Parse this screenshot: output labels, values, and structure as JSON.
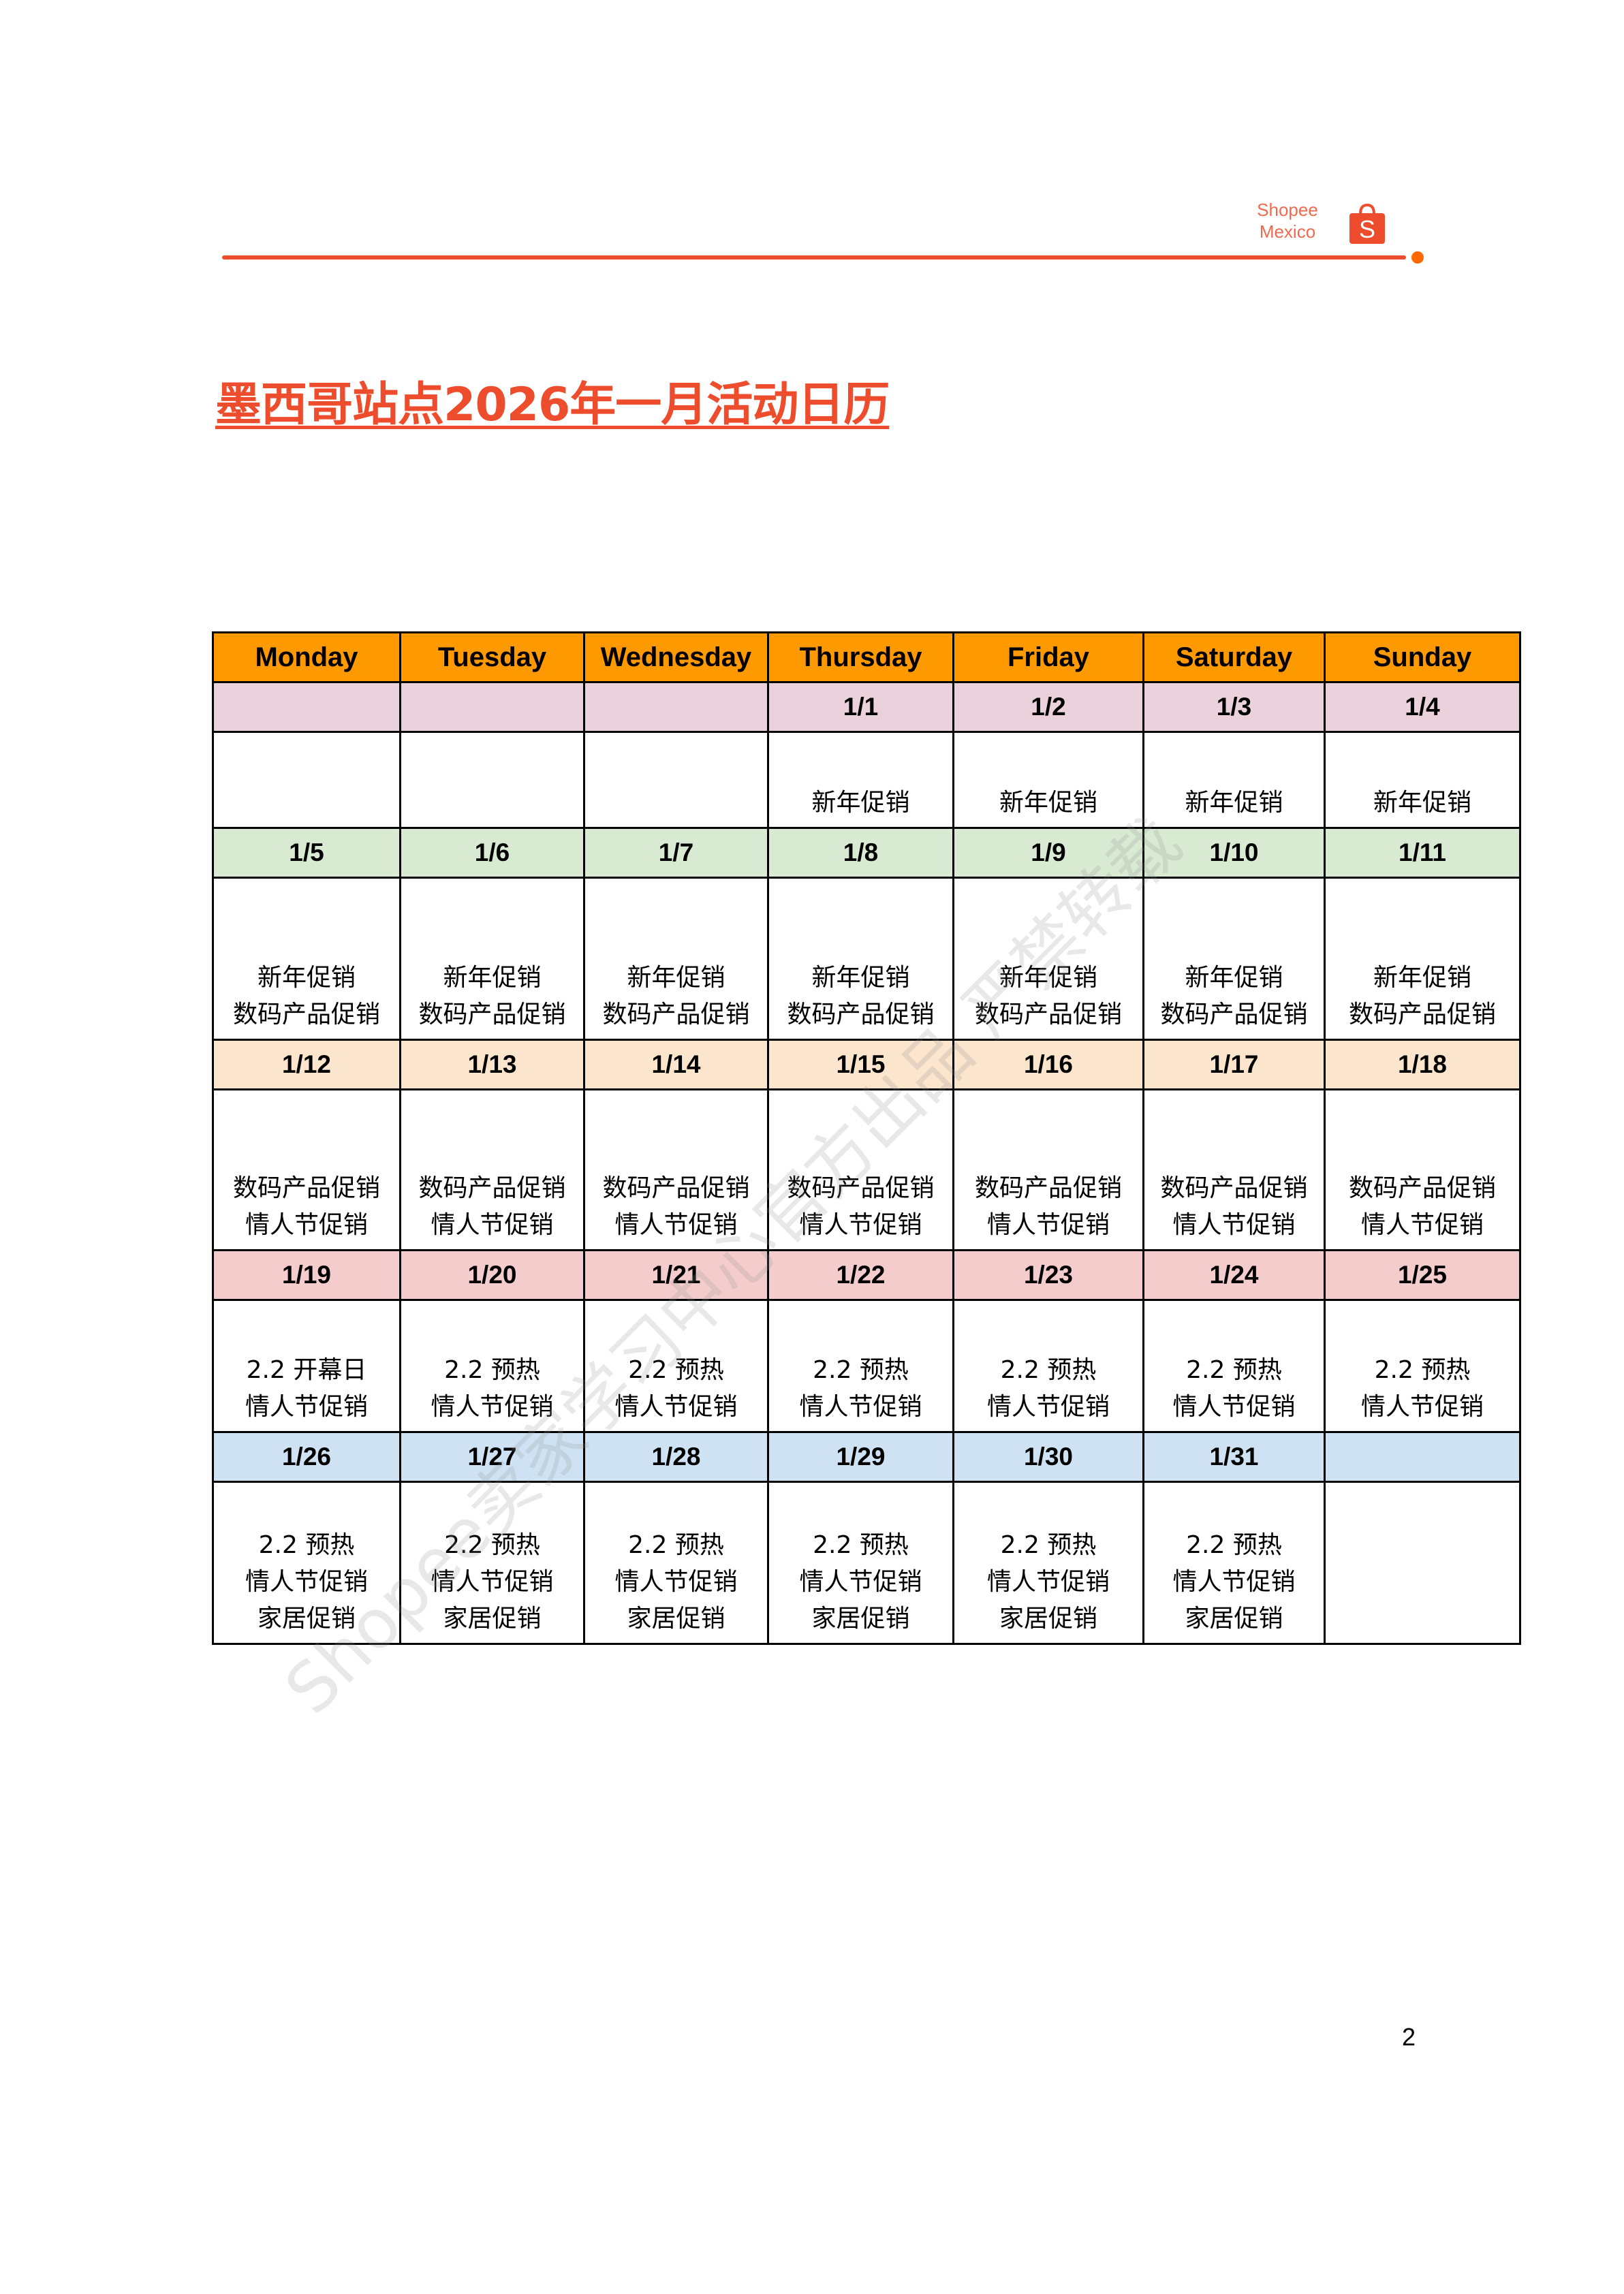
{
  "brand": {
    "name_line1": "Shopee",
    "name_line2": "Mexico",
    "color": "#ee4d2d",
    "icon": "shopee-bag-icon"
  },
  "title": "墨西哥站点2026年一月活动日历",
  "watermark": "Shopee卖家学习中心官方出品 严禁转载",
  "page_number": "2",
  "calendar": {
    "header_color": "#ff9900",
    "days": [
      "Monday",
      "Tuesday",
      "Wednesday",
      "Thursday",
      "Friday",
      "Saturday",
      "Sunday"
    ],
    "weeks": [
      {
        "color": "#ead1dc",
        "dates": [
          "",
          "",
          "",
          "1/1",
          "1/2",
          "1/3",
          "1/4"
        ],
        "events": [
          [],
          [],
          [],
          [
            "新年促销"
          ],
          [
            "新年促销"
          ],
          [
            "新年促销"
          ],
          [
            "新年促销"
          ]
        ]
      },
      {
        "color": "#d9ead3",
        "dates": [
          "1/5",
          "1/6",
          "1/7",
          "1/8",
          "1/9",
          "1/10",
          "1/11"
        ],
        "events": [
          [
            "新年促销",
            "数码产品促销"
          ],
          [
            "新年促销",
            "数码产品促销"
          ],
          [
            "新年促销",
            "数码产品促销"
          ],
          [
            "新年促销",
            "数码产品促销"
          ],
          [
            "新年促销",
            "数码产品促销"
          ],
          [
            "新年促销",
            "数码产品促销"
          ],
          [
            "新年促销",
            "数码产品促销"
          ]
        ]
      },
      {
        "color": "#fce5cd",
        "dates": [
          "1/12",
          "1/13",
          "1/14",
          "1/15",
          "1/16",
          "1/17",
          "1/18"
        ],
        "events": [
          [
            "数码产品促销",
            "情人节促销"
          ],
          [
            "数码产品促销",
            "情人节促销"
          ],
          [
            "数码产品促销",
            "情人节促销"
          ],
          [
            "数码产品促销",
            "情人节促销"
          ],
          [
            "数码产品促销",
            "情人节促销"
          ],
          [
            "数码产品促销",
            "情人节促销"
          ],
          [
            "数码产品促销",
            "情人节促销"
          ]
        ]
      },
      {
        "color": "#f4cccc",
        "dates": [
          "1/19",
          "1/20",
          "1/21",
          "1/22",
          "1/23",
          "1/24",
          "1/25"
        ],
        "events": [
          [
            "2.2 开幕日",
            "情人节促销"
          ],
          [
            "2.2 预热",
            "情人节促销"
          ],
          [
            "2.2 预热",
            "情人节促销"
          ],
          [
            "2.2 预热",
            "情人节促销"
          ],
          [
            "2.2 预热",
            "情人节促销"
          ],
          [
            "2.2 预热",
            "情人节促销"
          ],
          [
            "2.2 预热",
            "情人节促销"
          ]
        ]
      },
      {
        "color": "#cfe2f3",
        "dates": [
          "1/26",
          "1/27",
          "1/28",
          "1/29",
          "1/30",
          "1/31",
          ""
        ],
        "events": [
          [
            "2.2 预热",
            "情人节促销",
            "家居促销"
          ],
          [
            "2.2 预热",
            "情人节促销",
            "家居促销"
          ],
          [
            "2.2 预热",
            "情人节促销",
            "家居促销"
          ],
          [
            "2.2 预热",
            "情人节促销",
            "家居促销"
          ],
          [
            "2.2 预热",
            "情人节促销",
            "家居促销"
          ],
          [
            "2.2 预热",
            "情人节促销",
            "家居促销"
          ],
          []
        ]
      }
    ]
  }
}
